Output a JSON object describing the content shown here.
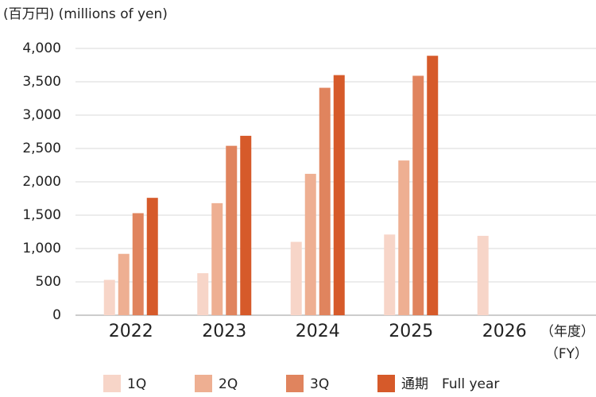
{
  "chart_data": {
    "type": "bar",
    "y_label": "(百万円) (millions of yen)",
    "x_unit": [
      "（年度）",
      "（FY）"
    ],
    "categories": [
      "2022",
      "2023",
      "2024",
      "2025",
      "2026"
    ],
    "series": [
      {
        "name": "1Q",
        "color": "#f7d5c8",
        "values": [
          530,
          630,
          1100,
          1210,
          1190
        ]
      },
      {
        "name": "2Q",
        "color": "#eeaf92",
        "values": [
          920,
          1680,
          2120,
          2320,
          null
        ]
      },
      {
        "name": "3Q",
        "color": "#e0845e",
        "values": [
          1530,
          2540,
          3410,
          3590,
          null
        ]
      },
      {
        "name": "通期　Full year",
        "color": "#d65a2a",
        "values": [
          1760,
          2690,
          3600,
          3890,
          null
        ]
      }
    ],
    "ylim": [
      0,
      4000
    ],
    "yticks": [
      0,
      500,
      {
        "value": 1000,
        "label": "1,000"
      },
      {
        "value": 1500,
        "label": "1,500"
      },
      {
        "value": 2000,
        "label": "2,000"
      },
      {
        "value": 2500,
        "label": "2,500"
      },
      {
        "value": 3000,
        "label": "3,000"
      },
      {
        "value": 3500,
        "label": "3,500"
      },
      {
        "value": 4000,
        "label": "4,000"
      }
    ],
    "grid": true
  }
}
